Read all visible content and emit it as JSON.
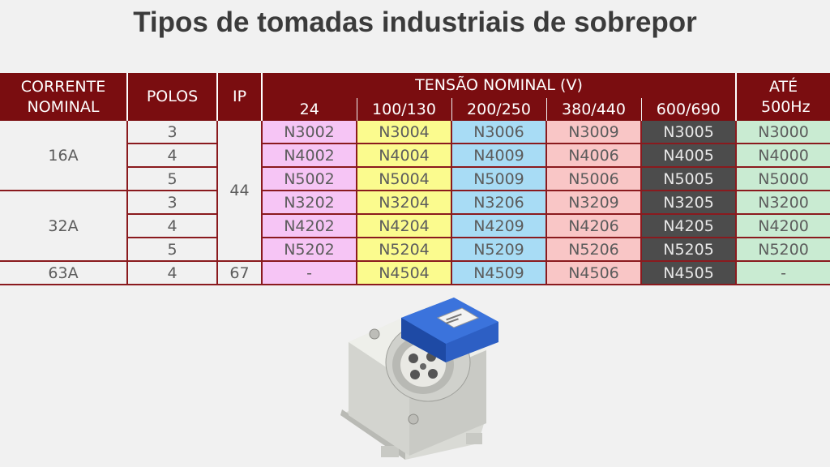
{
  "title": "Tipos de tomadas industriais de sobrepor",
  "headers": {
    "corrente": "CORRENTE NOMINAL",
    "polos": "POLOS",
    "ip": "IP",
    "tensao": "TENSÃO NOMINAL (V)",
    "ate": "ATÉ 500Hz",
    "voltages": [
      "24",
      "100/130",
      "200/250",
      "380/440",
      "600/690"
    ]
  },
  "groups": [
    {
      "corrente": "16A",
      "ip": "44"
    },
    {
      "corrente": "32A"
    },
    {
      "corrente": "63A",
      "ip": "67"
    }
  ],
  "rows": [
    {
      "polos": "3",
      "codes": [
        "N3002",
        "N3004",
        "N3006",
        "N3009",
        "N3005",
        "N3000"
      ]
    },
    {
      "polos": "4",
      "codes": [
        "N4002",
        "N4004",
        "N4009",
        "N4006",
        "N4005",
        "N4000"
      ]
    },
    {
      "polos": "5",
      "codes": [
        "N5002",
        "N5004",
        "N5009",
        "N5006",
        "N5005",
        "N5000"
      ]
    },
    {
      "polos": "3",
      "codes": [
        "N3202",
        "N3204",
        "N3206",
        "N3209",
        "N3205",
        "N3200"
      ]
    },
    {
      "polos": "4",
      "codes": [
        "N4202",
        "N4204",
        "N4209",
        "N4206",
        "N4205",
        "N4200"
      ]
    },
    {
      "polos": "5",
      "codes": [
        "N5202",
        "N5204",
        "N5209",
        "N5206",
        "N5205",
        "N5200"
      ]
    },
    {
      "polos": "4",
      "codes": [
        "-",
        "N4504",
        "N4509",
        "N4506",
        "N4505",
        "-"
      ]
    }
  ],
  "colors": {
    "header_bg": "#7a0d10",
    "v24": "#f6c5f5",
    "v100": "#fbfb8e",
    "v200": "#a8dcf5",
    "v380": "#f9c6c6",
    "v600": "#4c4c4c",
    "v500hz": "#c9ebd2"
  }
}
